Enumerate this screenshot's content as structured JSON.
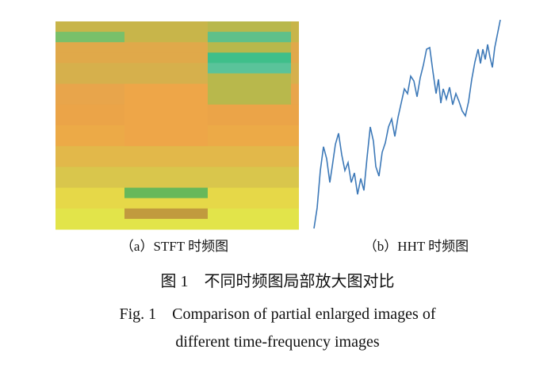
{
  "figure": {
    "subcaptions": [
      "（a）STFT 时频图",
      "（b）HHT 时频图"
    ],
    "caption_zh": "图 1　不同时频图局部放大图对比",
    "caption_en": [
      "Fig. 1　Comparison of partial enlarged images of",
      "different time-frequency images"
    ]
  }
}
